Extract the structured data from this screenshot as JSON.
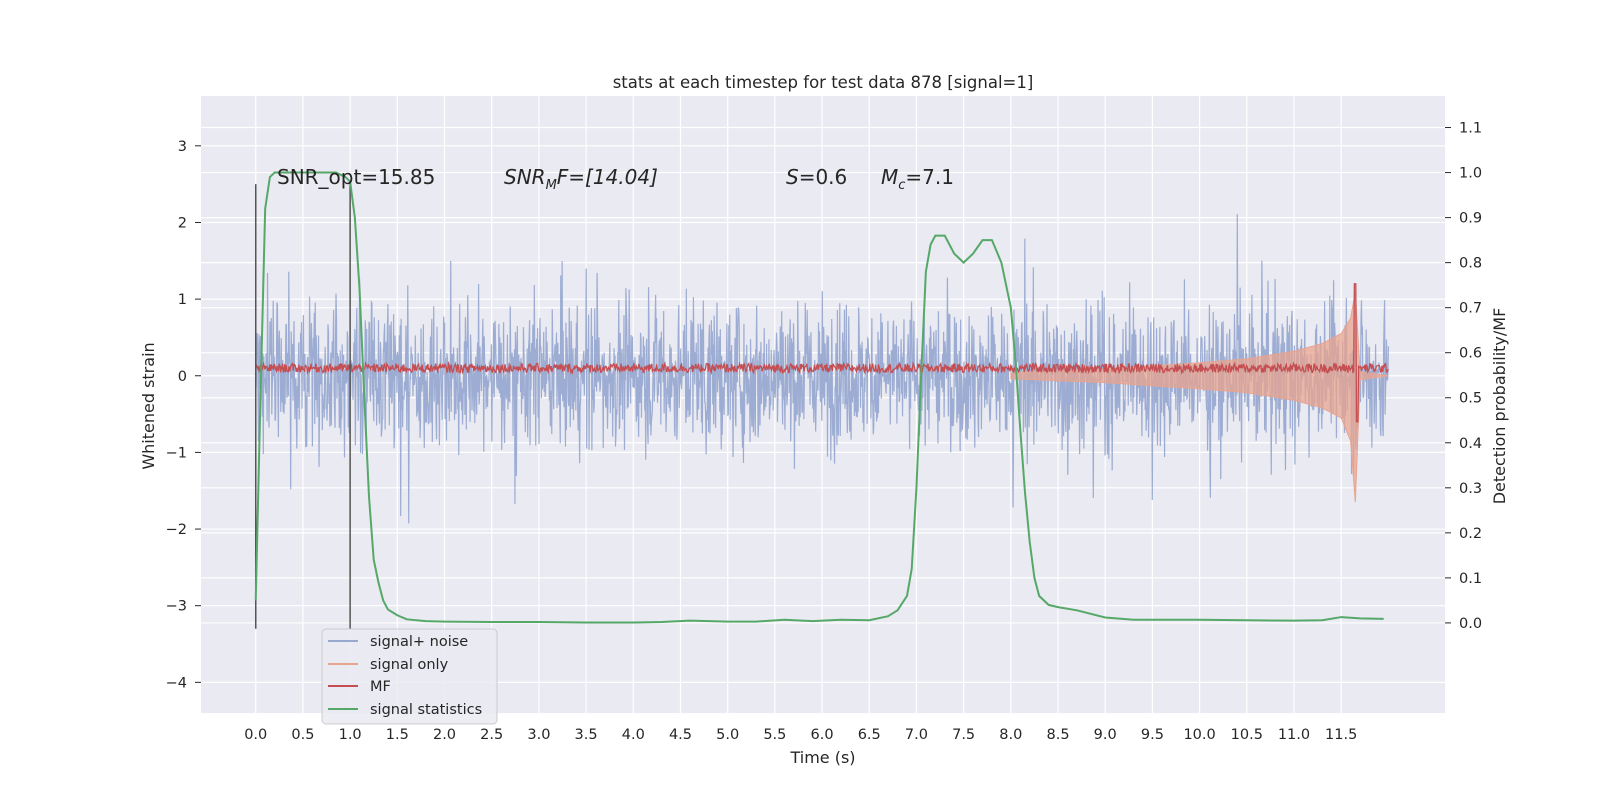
{
  "chart_data": {
    "type": "line",
    "title": "stats at each timestep for test data 878 [signal=1]",
    "xlabel": "Time (s)",
    "ylabel_left": "Whitened strain",
    "ylabel_right": "Detection probability/MF",
    "xlim": [
      -0.58,
      12.6
    ],
    "ylim_left": [
      -4.4,
      3.65
    ],
    "ylim_right": [
      -0.2,
      1.17
    ],
    "x_ticks": [
      "0.0",
      "0.5",
      "1.0",
      "1.5",
      "2.0",
      "2.5",
      "3.0",
      "3.5",
      "4.0",
      "4.5",
      "5.0",
      "5.5",
      "6.0",
      "6.5",
      "7.0",
      "7.5",
      "8.0",
      "8.5",
      "9.0",
      "9.5",
      "10.0",
      "10.5",
      "11.0",
      "11.5"
    ],
    "x_tick_values": [
      0,
      0.5,
      1,
      1.5,
      2,
      2.5,
      3,
      3.5,
      4,
      4.5,
      5,
      5.5,
      6,
      6.5,
      7,
      7.5,
      8,
      8.5,
      9,
      9.5,
      10,
      10.5,
      11,
      11.5
    ],
    "y_ticks_left": [
      "−4",
      "−3",
      "−2",
      "−1",
      "0",
      "1",
      "2",
      "3"
    ],
    "y_tick_values_left": [
      -4,
      -3,
      -2,
      -1,
      0,
      1,
      2,
      3
    ],
    "y_ticks_right": [
      "0.0",
      "0.1",
      "0.2",
      "0.3",
      "0.4",
      "0.5",
      "0.6",
      "0.7",
      "0.8",
      "0.9",
      "1.0",
      "1.1"
    ],
    "y_tick_values_right": [
      0,
      0.1,
      0.2,
      0.3,
      0.4,
      0.5,
      0.6,
      0.7,
      0.8,
      0.9,
      1.0,
      1.1
    ],
    "grid": true,
    "legend_position": "bottom-left",
    "annotations": {
      "snr_opt": "SNR_opt=15.85",
      "snr_mf_var": "SNR",
      "snr_mf_sub": "M",
      "snr_mf_rest": "F=[14.04]",
      "s_var": "S",
      "s_rest": "=0.6",
      "mc_var": "M",
      "mc_sub": "c",
      "mc_rest": "=7.1"
    },
    "vlines_x": [
      0.0,
      1.0
    ],
    "vline_range_left": [
      -3.3,
      2.5
    ],
    "series": [
      {
        "name": "signal+ noise",
        "color": "#98a9d0",
        "axis": "left",
        "duration": 12.0,
        "noise_sigma": 0.62
      },
      {
        "name": "signal only",
        "color": "#e8a48f",
        "axis": "left",
        "envelope": {
          "x": [
            8.0,
            9.0,
            10.0,
            10.5,
            11.0,
            11.3,
            11.5,
            11.6,
            11.65,
            11.7,
            12.0
          ],
          "upper": [
            0.04,
            0.09,
            0.17,
            0.22,
            0.32,
            0.42,
            0.55,
            0.75,
            1.1,
            0.05,
            0.0
          ],
          "lower": [
            -0.04,
            -0.09,
            -0.17,
            -0.22,
            -0.32,
            -0.42,
            -0.55,
            -0.85,
            -1.65,
            -0.05,
            0.0
          ]
        }
      },
      {
        "name": "MF",
        "color": "#c44e52",
        "axis": "left",
        "baseline": 0.1,
        "spike_x": 11.65,
        "spike_y": 1.2
      },
      {
        "name": "signal statistics",
        "color": "#55a868",
        "axis": "right",
        "x": [
          0.0,
          0.05,
          0.1,
          0.15,
          0.2,
          0.3,
          0.5,
          0.7,
          0.85,
          0.95,
          1.0,
          1.05,
          1.1,
          1.15,
          1.2,
          1.25,
          1.3,
          1.35,
          1.4,
          1.5,
          1.6,
          1.8,
          2.0,
          2.5,
          3.0,
          3.5,
          4.0,
          4.3,
          4.6,
          5.0,
          5.3,
          5.6,
          5.9,
          6.2,
          6.5,
          6.7,
          6.8,
          6.9,
          6.95,
          7.0,
          7.05,
          7.1,
          7.15,
          7.2,
          7.3,
          7.4,
          7.5,
          7.6,
          7.7,
          7.8,
          7.9,
          8.0,
          8.05,
          8.1,
          8.15,
          8.2,
          8.25,
          8.3,
          8.4,
          8.5,
          8.7,
          9.0,
          9.3,
          9.5,
          10.0,
          10.5,
          11.0,
          11.3,
          11.5,
          11.7,
          11.95
        ],
        "y": [
          0.05,
          0.5,
          0.92,
          0.99,
          1.0,
          1.0,
          1.0,
          1.0,
          1.0,
          0.99,
          0.98,
          0.9,
          0.74,
          0.5,
          0.28,
          0.14,
          0.09,
          0.05,
          0.03,
          0.017,
          0.008,
          0.004,
          0.003,
          0.002,
          0.002,
          0.001,
          0.001,
          0.002,
          0.005,
          0.003,
          0.003,
          0.007,
          0.004,
          0.007,
          0.006,
          0.015,
          0.028,
          0.06,
          0.12,
          0.3,
          0.55,
          0.78,
          0.84,
          0.86,
          0.86,
          0.82,
          0.8,
          0.82,
          0.85,
          0.85,
          0.8,
          0.7,
          0.58,
          0.43,
          0.29,
          0.18,
          0.1,
          0.06,
          0.04,
          0.035,
          0.028,
          0.012,
          0.007,
          0.007,
          0.007,
          0.006,
          0.005,
          0.006,
          0.013,
          0.01,
          0.009
        ]
      }
    ]
  },
  "colors": {
    "background": "#ffffff",
    "plot_bg": "#eaeaf2",
    "grid": "#ffffff",
    "text": "#262626",
    "vline": "#555555"
  }
}
